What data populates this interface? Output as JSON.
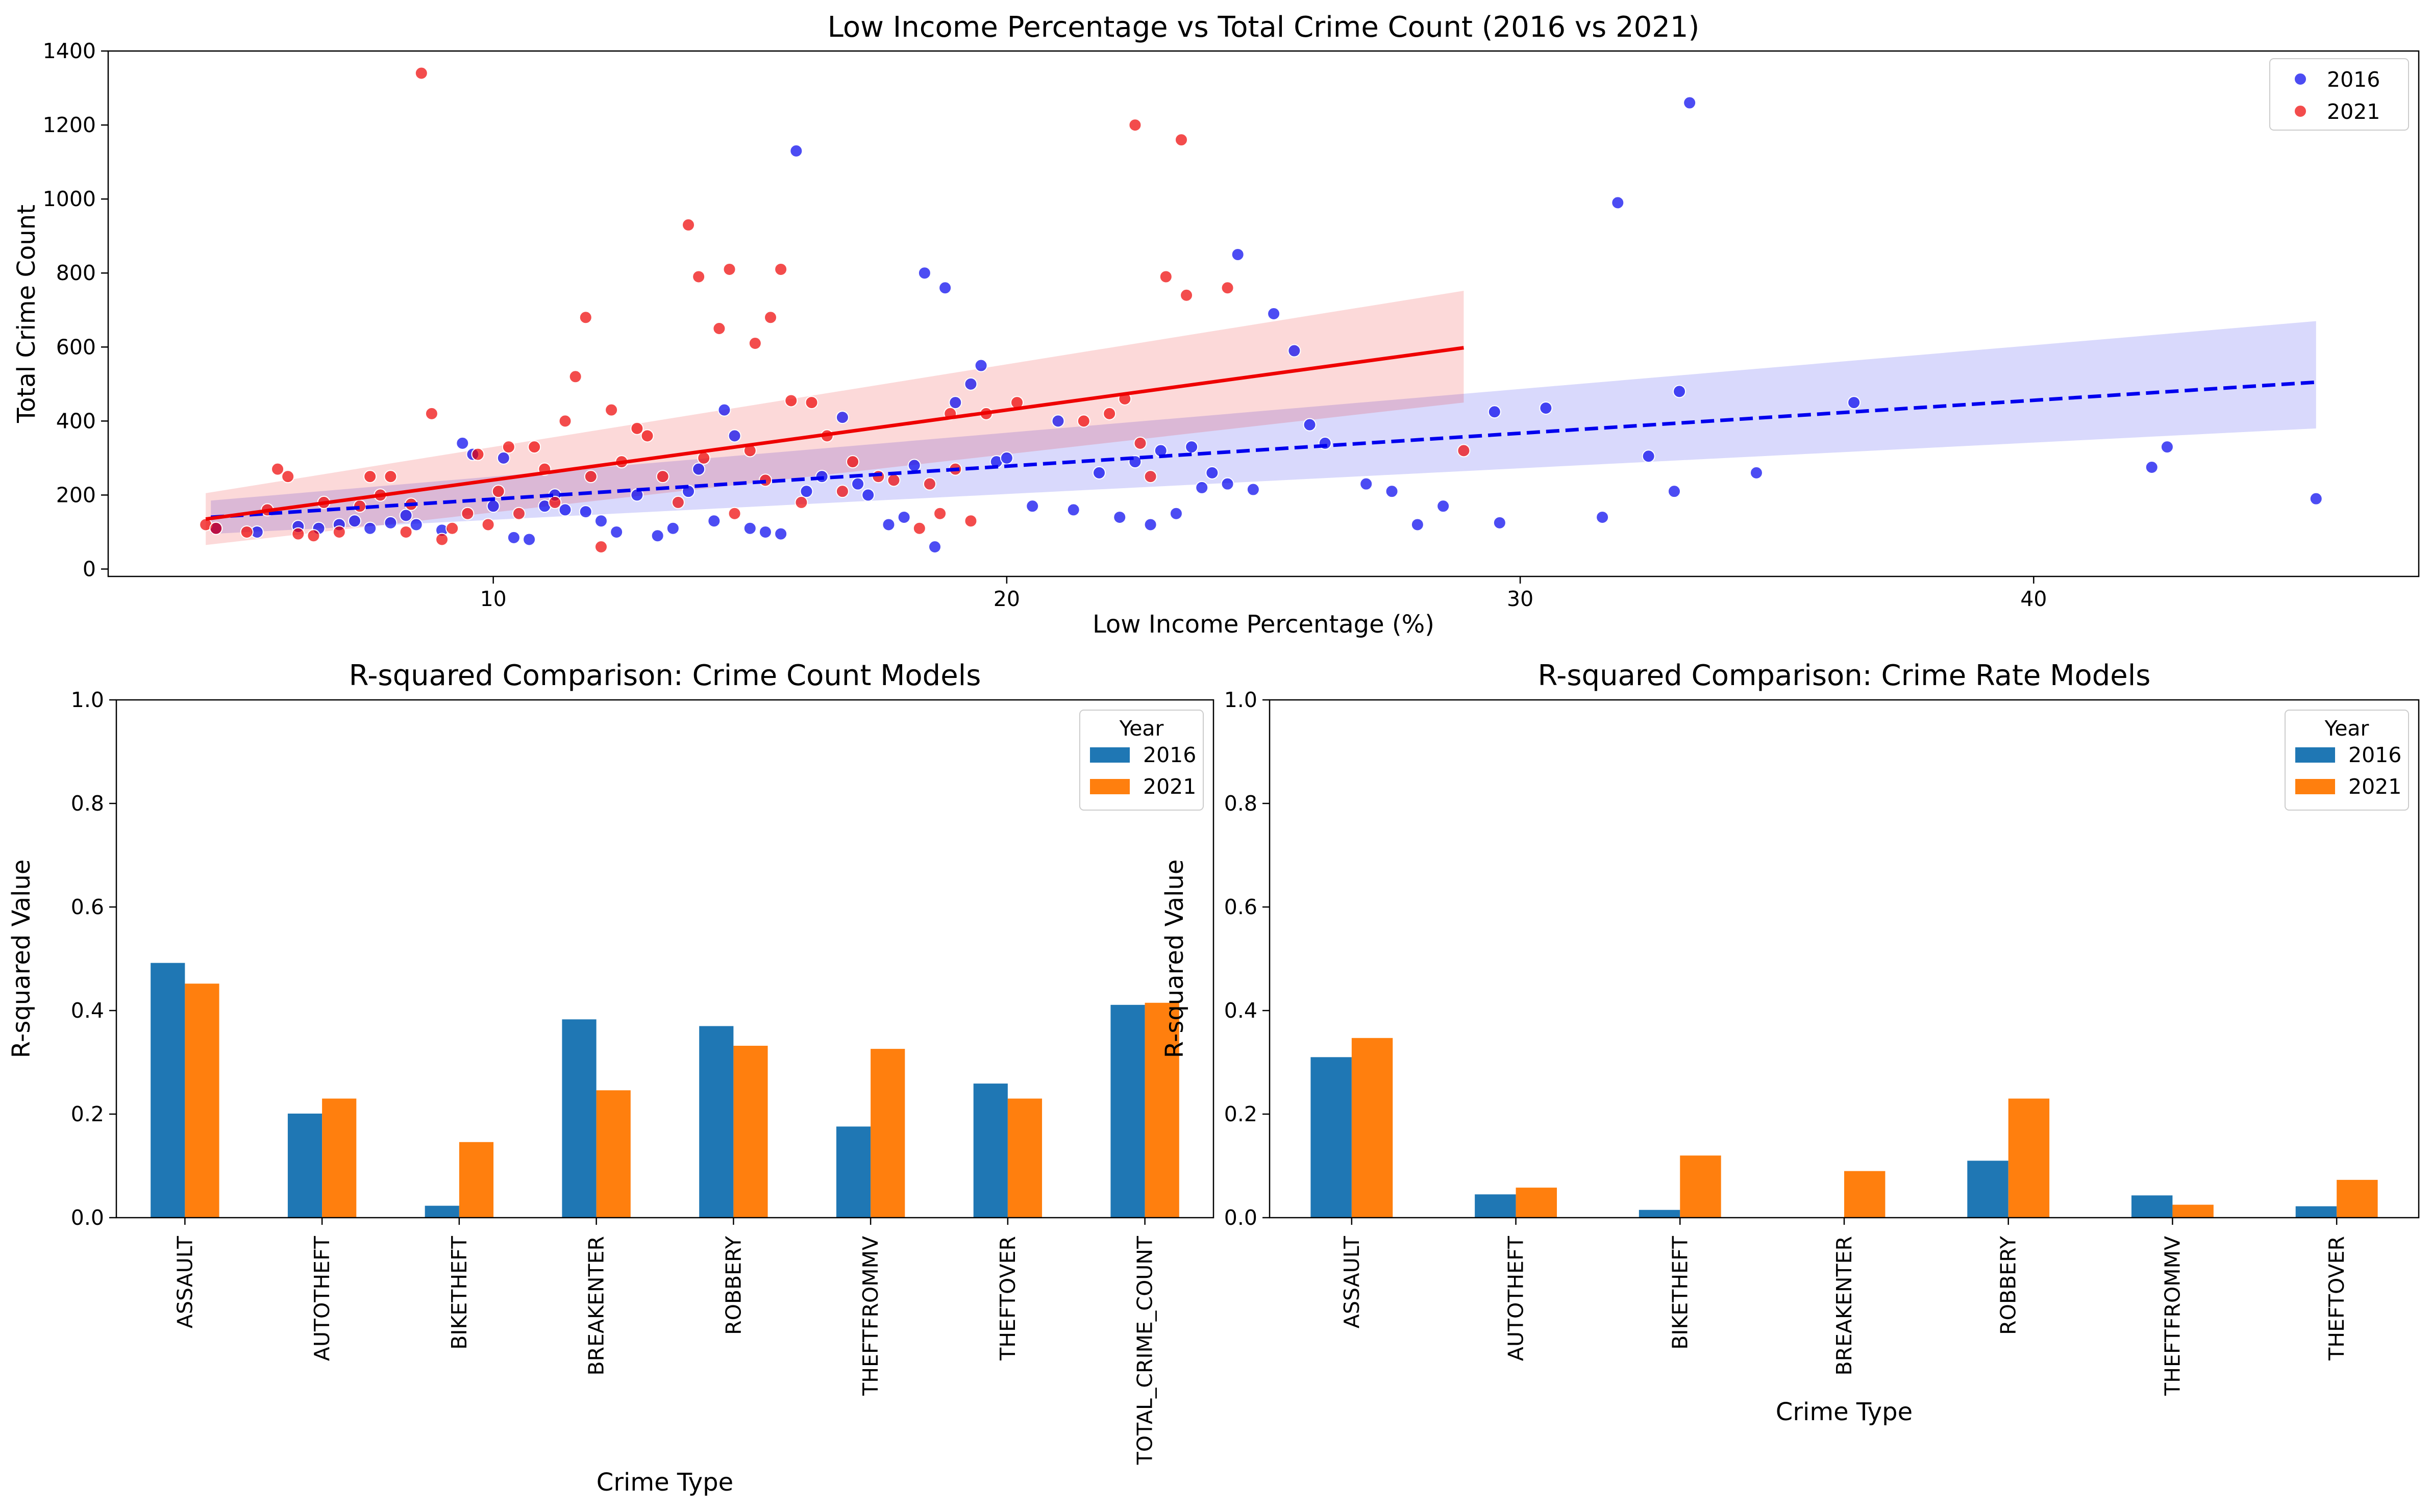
{
  "chart_data": [
    {
      "type": "scatter",
      "title": "Low Income Percentage vs Total Crime Count (2016 vs 2021)",
      "xlabel": "Low Income Percentage (%)",
      "ylabel": "Total Crime Count",
      "xlim": [
        2.5,
        47.5
      ],
      "ylim": [
        -20,
        1400
      ],
      "xticks": [
        10,
        20,
        30,
        40
      ],
      "yticks": [
        0,
        200,
        400,
        600,
        800,
        1000,
        1200,
        1400
      ],
      "grid": false,
      "legend": "top-right",
      "series": [
        {
          "name": "2016",
          "color": "#0000ee",
          "points": [
            [
              4.6,
              110
            ],
            [
              5.4,
              100
            ],
            [
              6.2,
              115
            ],
            [
              6.6,
              110
            ],
            [
              7.0,
              120
            ],
            [
              7.3,
              130
            ],
            [
              7.6,
              110
            ],
            [
              8.0,
              125
            ],
            [
              8.3,
              145
            ],
            [
              8.5,
              120
            ],
            [
              9.0,
              105
            ],
            [
              9.4,
              340
            ],
            [
              9.6,
              310
            ],
            [
              10.0,
              170
            ],
            [
              10.2,
              300
            ],
            [
              10.4,
              85
            ],
            [
              10.7,
              80
            ],
            [
              11.0,
              170
            ],
            [
              11.2,
              200
            ],
            [
              11.4,
              160
            ],
            [
              11.8,
              155
            ],
            [
              12.1,
              130
            ],
            [
              12.4,
              100
            ],
            [
              12.8,
              200
            ],
            [
              13.2,
              90
            ],
            [
              13.5,
              110
            ],
            [
              13.8,
              210
            ],
            [
              14.0,
              270
            ],
            [
              14.3,
              130
            ],
            [
              14.5,
              430
            ],
            [
              14.7,
              360
            ],
            [
              15.0,
              110
            ],
            [
              15.3,
              100
            ],
            [
              15.6,
              95
            ],
            [
              15.9,
              1130
            ],
            [
              16.1,
              210
            ],
            [
              16.4,
              250
            ],
            [
              16.8,
              410
            ],
            [
              17.1,
              230
            ],
            [
              17.3,
              200
            ],
            [
              17.7,
              120
            ],
            [
              18.0,
              140
            ],
            [
              18.2,
              280
            ],
            [
              18.4,
              800
            ],
            [
              18.6,
              60
            ],
            [
              18.8,
              760
            ],
            [
              19.0,
              450
            ],
            [
              19.3,
              500
            ],
            [
              19.5,
              550
            ],
            [
              19.8,
              290
            ],
            [
              20.0,
              300
            ],
            [
              20.5,
              170
            ],
            [
              21.0,
              400
            ],
            [
              21.3,
              160
            ],
            [
              21.8,
              260
            ],
            [
              22.2,
              140
            ],
            [
              22.5,
              290
            ],
            [
              22.8,
              120
            ],
            [
              23.0,
              320
            ],
            [
              23.3,
              150
            ],
            [
              23.6,
              330
            ],
            [
              23.8,
              220
            ],
            [
              24.0,
              260
            ],
            [
              24.3,
              230
            ],
            [
              24.5,
              850
            ],
            [
              24.8,
              215
            ],
            [
              25.2,
              690
            ],
            [
              25.6,
              590
            ],
            [
              25.9,
              390
            ],
            [
              26.2,
              340
            ],
            [
              27.0,
              230
            ],
            [
              27.5,
              210
            ],
            [
              28.0,
              120
            ],
            [
              28.5,
              170
            ],
            [
              29.5,
              425
            ],
            [
              29.6,
              125
            ],
            [
              30.5,
              435
            ],
            [
              31.6,
              140
            ],
            [
              31.9,
              990
            ],
            [
              32.5,
              305
            ],
            [
              33.0,
              210
            ],
            [
              33.1,
              480
            ],
            [
              33.3,
              1260
            ],
            [
              34.6,
              260
            ],
            [
              36.5,
              450
            ],
            [
              42.3,
              275
            ],
            [
              42.6,
              330
            ],
            [
              45.5,
              190
            ]
          ]
        },
        {
          "name": "2021",
          "color": "#ee0000",
          "points": [
            [
              4.4,
              120
            ],
            [
              4.6,
              110
            ],
            [
              5.2,
              100
            ],
            [
              5.6,
              160
            ],
            [
              5.8,
              270
            ],
            [
              6.0,
              250
            ],
            [
              6.2,
              95
            ],
            [
              6.5,
              90
            ],
            [
              6.7,
              180
            ],
            [
              7.0,
              100
            ],
            [
              7.4,
              170
            ],
            [
              7.6,
              250
            ],
            [
              7.8,
              200
            ],
            [
              8.0,
              250
            ],
            [
              8.3,
              100
            ],
            [
              8.4,
              175
            ],
            [
              8.6,
              1340
            ],
            [
              8.8,
              420
            ],
            [
              9.0,
              80
            ],
            [
              9.2,
              110
            ],
            [
              9.5,
              150
            ],
            [
              9.7,
              310
            ],
            [
              9.9,
              120
            ],
            [
              10.1,
              210
            ],
            [
              10.3,
              330
            ],
            [
              10.5,
              150
            ],
            [
              10.8,
              330
            ],
            [
              11.0,
              270
            ],
            [
              11.2,
              180
            ],
            [
              11.4,
              400
            ],
            [
              11.6,
              520
            ],
            [
              11.8,
              680
            ],
            [
              11.9,
              250
            ],
            [
              12.1,
              60
            ],
            [
              12.3,
              430
            ],
            [
              12.5,
              290
            ],
            [
              12.8,
              380
            ],
            [
              13.0,
              360
            ],
            [
              13.3,
              250
            ],
            [
              13.6,
              180
            ],
            [
              13.8,
              930
            ],
            [
              14.0,
              790
            ],
            [
              14.1,
              300
            ],
            [
              14.4,
              650
            ],
            [
              14.6,
              810
            ],
            [
              14.7,
              150
            ],
            [
              15.0,
              320
            ],
            [
              15.1,
              610
            ],
            [
              15.3,
              240
            ],
            [
              15.4,
              680
            ],
            [
              15.6,
              810
            ],
            [
              15.8,
              455
            ],
            [
              16.0,
              180
            ],
            [
              16.2,
              450
            ],
            [
              16.5,
              360
            ],
            [
              16.8,
              210
            ],
            [
              17.0,
              290
            ],
            [
              17.5,
              250
            ],
            [
              17.8,
              240
            ],
            [
              18.3,
              110
            ],
            [
              18.5,
              230
            ],
            [
              18.7,
              150
            ],
            [
              18.9,
              420
            ],
            [
              19.0,
              270
            ],
            [
              19.3,
              130
            ],
            [
              19.6,
              420
            ],
            [
              20.2,
              450
            ],
            [
              21.5,
              400
            ],
            [
              22.0,
              420
            ],
            [
              22.3,
              460
            ],
            [
              22.5,
              1200
            ],
            [
              22.6,
              340
            ],
            [
              22.8,
              250
            ],
            [
              23.1,
              790
            ],
            [
              23.4,
              1160
            ],
            [
              23.5,
              740
            ],
            [
              24.3,
              760
            ],
            [
              28.9,
              320
            ]
          ]
        }
      ],
      "fits": [
        {
          "name": "2016",
          "style": "dashed",
          "x": [
            4.5,
            45.5
          ],
          "y": [
            140,
            505
          ],
          "ci_lower": [
            95,
            380
          ],
          "ci_upper": [
            185,
            670
          ]
        },
        {
          "name": "2021",
          "style": "solid",
          "x": [
            4.4,
            28.9
          ],
          "y": [
            135,
            598
          ],
          "ci_lower": [
            65,
            450
          ],
          "ci_upper": [
            205,
            752
          ]
        }
      ]
    },
    {
      "type": "bar",
      "title": "R-squared Comparison: Crime Count Models",
      "xlabel": "Crime Type",
      "ylabel": "R-squared Value",
      "ylim": [
        0,
        1.0
      ],
      "yticks": [
        "0.0",
        "0.2",
        "0.4",
        "0.6",
        "0.8",
        "1.0"
      ],
      "legend": "top-right",
      "legend_title": "Year",
      "categories": [
        "ASSAULT",
        "AUTOTHEFT",
        "BIKETHEFT",
        "BREAKENTER",
        "ROBBERY",
        "THEFTFROMMV",
        "THEFTOVER",
        "TOTAL_CRIME_COUNT"
      ],
      "series": [
        {
          "name": "2016",
          "color": "#1f77b4",
          "values": [
            0.492,
            0.201,
            0.023,
            0.383,
            0.37,
            0.176,
            0.259,
            0.411
          ]
        },
        {
          "name": "2021",
          "color": "#ff7f0e",
          "values": [
            0.452,
            0.23,
            0.146,
            0.246,
            0.332,
            0.326,
            0.23,
            0.415
          ]
        }
      ]
    },
    {
      "type": "bar",
      "title": "R-squared Comparison: Crime Rate Models",
      "xlabel": "Crime Type",
      "ylabel": "R-squared Value",
      "ylim": [
        0,
        1.0
      ],
      "yticks": [
        "0.0",
        "0.2",
        "0.4",
        "0.6",
        "0.8",
        "1.0"
      ],
      "legend": "top-right",
      "legend_title": "Year",
      "categories": [
        "ASSAULT",
        "AUTOTHEFT",
        "BIKETHEFT",
        "BREAKENTER",
        "ROBBERY",
        "THEFTFROMMV",
        "THEFTOVER"
      ],
      "series": [
        {
          "name": "2016",
          "color": "#1f77b4",
          "values": [
            0.31,
            0.045,
            0.015,
            0.0,
            0.11,
            0.043,
            0.022
          ]
        },
        {
          "name": "2021",
          "color": "#ff7f0e",
          "values": [
            0.347,
            0.058,
            0.12,
            0.09,
            0.23,
            0.025,
            0.073
          ]
        }
      ]
    }
  ]
}
